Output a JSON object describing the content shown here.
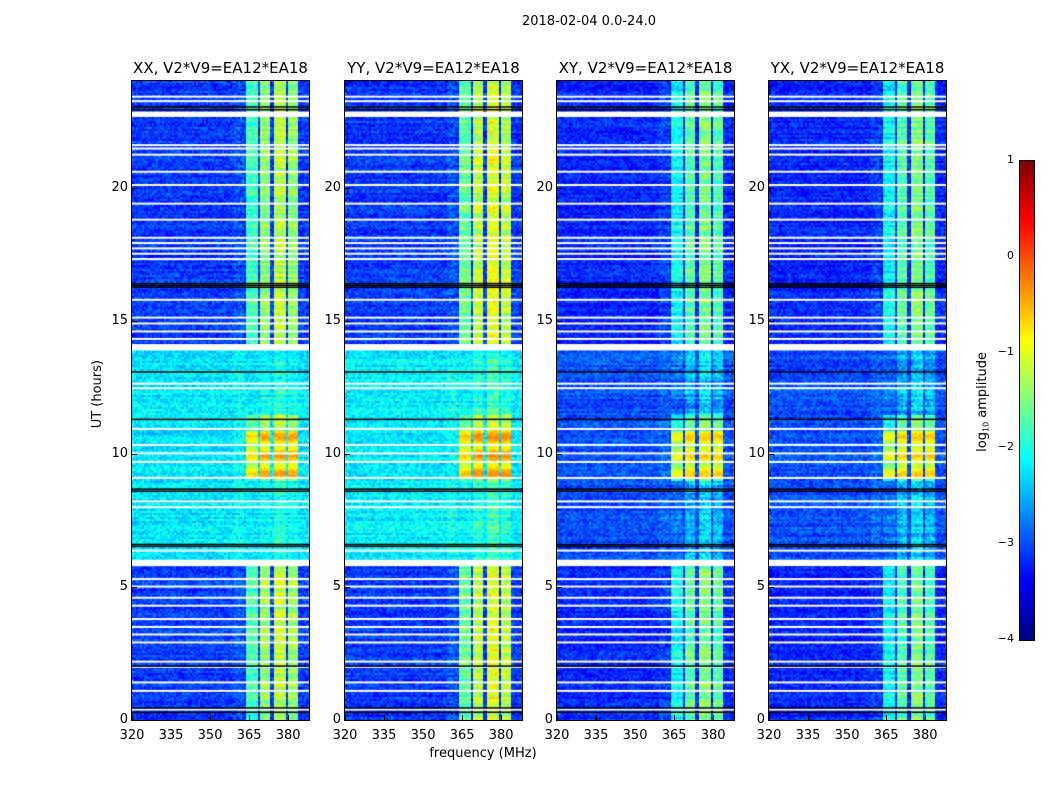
{
  "chart_data": {
    "type": "heatmap",
    "title": "2018-02-04 0.0-24.0",
    "xlabel": "frequency (MHz)",
    "ylabel": "UT (hours)",
    "xlim": [
      320,
      388
    ],
    "ylim": [
      0,
      24
    ],
    "xticks": [
      "320",
      "335",
      "350",
      "365",
      "380"
    ],
    "xtick_values": [
      320,
      335,
      350,
      365,
      380
    ],
    "yticks": [
      "0",
      "5",
      "10",
      "15",
      "20"
    ],
    "ytick_values": [
      0,
      5,
      10,
      15,
      20
    ],
    "colorbar": {
      "label_main": "log",
      "label_sub": "10",
      "label_rest": " amplitude",
      "range": [
        -4,
        1
      ],
      "ticks": [
        "1",
        "0",
        "−1",
        "−2",
        "−3",
        "−4"
      ],
      "tick_values": [
        1,
        0,
        -1,
        -2,
        -3,
        -4
      ],
      "colormap": "jet"
    },
    "panels": [
      {
        "title": "XX, V2*V9=EA12*EA18",
        "background_log_amp": -3.1,
        "daytime_background_log_amp": -2.25,
        "band_log_amp": -1.4,
        "rfi_peak_log_amp": -0.2
      },
      {
        "title": "YY, V2*V9=EA12*EA18",
        "background_log_amp": -3.1,
        "daytime_background_log_amp": -2.2,
        "band_log_amp": -1.2,
        "rfi_peak_log_amp": -0.1
      },
      {
        "title": "XY, V2*V9=EA12*EA18",
        "background_log_amp": -3.2,
        "daytime_background_log_amp": -3.0,
        "band_log_amp": -1.7,
        "rfi_peak_log_amp": -0.4
      },
      {
        "title": "YX, V2*V9=EA12*EA18",
        "background_log_amp": -3.2,
        "daytime_background_log_amp": -3.0,
        "band_log_amp": -1.7,
        "rfi_peak_log_amp": -0.4
      }
    ],
    "bright_bands_MHz": [
      [
        363.1,
        367.7
      ],
      [
        368.5,
        372.3
      ],
      [
        373.8,
        378.4
      ],
      [
        379.2,
        383.7
      ]
    ],
    "elevated_background_hours": [
      6.0,
      14.0
    ],
    "rfi_event_hours": [
      9.1,
      10.9
    ],
    "flagged_hours": [
      [
        23.38,
        23.45
      ],
      [
        23.22,
        23.28
      ],
      [
        22.65,
        22.85
      ],
      [
        21.58,
        21.63
      ],
      [
        21.45,
        21.5
      ],
      [
        21.22,
        21.27
      ],
      [
        20.58,
        20.63
      ],
      [
        20.08,
        20.13
      ],
      [
        19.38,
        19.43
      ],
      [
        18.78,
        18.83
      ],
      [
        18.1,
        18.15
      ],
      [
        17.9,
        17.95
      ],
      [
        17.7,
        17.75
      ],
      [
        17.5,
        17.55
      ],
      [
        17.3,
        17.35
      ],
      [
        15.75,
        15.82
      ],
      [
        15.1,
        15.15
      ],
      [
        14.88,
        14.93
      ],
      [
        14.58,
        14.63
      ],
      [
        14.3,
        14.35
      ],
      [
        13.88,
        14.12
      ],
      [
        12.62,
        12.67
      ],
      [
        12.45,
        12.5
      ],
      [
        10.92,
        10.97
      ],
      [
        10.32,
        10.37
      ],
      [
        10.0,
        10.05
      ],
      [
        9.68,
        9.73
      ],
      [
        9.08,
        9.13
      ],
      [
        8.2,
        8.25
      ],
      [
        7.98,
        8.03
      ],
      [
        6.35,
        6.4
      ],
      [
        5.78,
        6.02
      ],
      [
        5.28,
        5.33
      ],
      [
        5.0,
        5.05
      ],
      [
        4.58,
        4.63
      ],
      [
        4.28,
        4.33
      ],
      [
        3.78,
        3.83
      ],
      [
        3.48,
        3.53
      ],
      [
        3.2,
        3.25
      ],
      [
        2.9,
        2.95
      ],
      [
        2.18,
        2.23
      ],
      [
        1.98,
        2.03
      ],
      [
        1.4,
        1.45
      ],
      [
        1.08,
        1.13
      ],
      [
        0.38,
        0.43
      ]
    ],
    "black_lines_hours": [
      23.05,
      22.95,
      16.35,
      16.42,
      16.28,
      13.1,
      11.32,
      8.7,
      8.62,
      6.62,
      6.55,
      2.05,
      0.32,
      0.48
    ]
  }
}
